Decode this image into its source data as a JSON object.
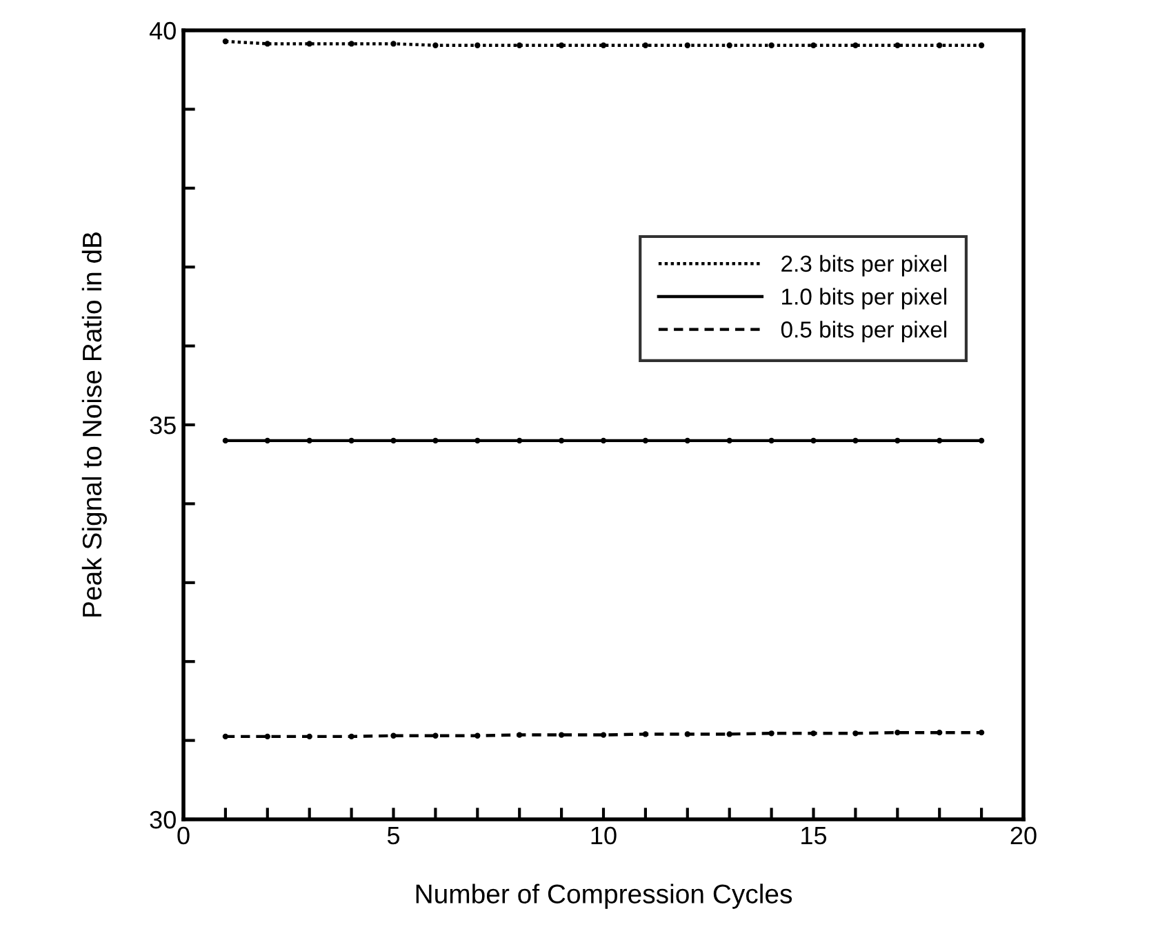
{
  "chart_data": {
    "type": "line",
    "xlabel": "Number of Compression Cycles",
    "ylabel": "Peak Signal to Noise Ratio in dB",
    "x": [
      1,
      2,
      3,
      4,
      5,
      6,
      7,
      8,
      9,
      10,
      11,
      12,
      13,
      14,
      15,
      16,
      17,
      18,
      19
    ],
    "series": [
      {
        "name": "2.3 bits per pixel",
        "color": "#000000",
        "line_style": "dotted",
        "values": [
          39.86,
          39.83,
          39.83,
          39.83,
          39.83,
          39.81,
          39.81,
          39.81,
          39.81,
          39.81,
          39.81,
          39.81,
          39.81,
          39.81,
          39.81,
          39.81,
          39.81,
          39.81,
          39.81
        ]
      },
      {
        "name": "1.0 bits per pixel",
        "color": "#000000",
        "line_style": "solid",
        "values": [
          34.8,
          34.8,
          34.8,
          34.8,
          34.8,
          34.8,
          34.8,
          34.8,
          34.8,
          34.8,
          34.8,
          34.8,
          34.8,
          34.8,
          34.8,
          34.8,
          34.8,
          34.8,
          34.8
        ]
      },
      {
        "name": "0.5 bits per pixel",
        "color": "#000000",
        "line_style": "dashed",
        "values": [
          31.05,
          31.05,
          31.05,
          31.05,
          31.06,
          31.06,
          31.06,
          31.07,
          31.07,
          31.07,
          31.08,
          31.08,
          31.08,
          31.09,
          31.09,
          31.09,
          31.1,
          31.1,
          31.1
        ]
      }
    ],
    "marker": "circle",
    "legend": "right",
    "grid": false,
    "xlim": [
      0,
      20
    ],
    "ylim": [
      30,
      40
    ],
    "xticks": [
      0,
      {
        "value": 1,
        "label": null
      },
      {
        "value": 2,
        "label": null
      },
      {
        "value": 3,
        "label": null
      },
      {
        "value": 4,
        "label": null
      },
      5,
      {
        "value": 6,
        "label": null
      },
      {
        "value": 7,
        "label": null
      },
      {
        "value": 8,
        "label": null
      },
      {
        "value": 9,
        "label": null
      },
      10,
      {
        "value": 11,
        "label": null
      },
      {
        "value": 12,
        "label": null
      },
      {
        "value": 13,
        "label": null
      },
      {
        "value": 14,
        "label": null
      },
      15,
      {
        "value": 16,
        "label": null
      },
      {
        "value": 17,
        "label": null
      },
      {
        "value": 18,
        "label": null
      },
      {
        "value": 19,
        "label": null
      },
      20
    ],
    "yticks": [
      30,
      {
        "value": 31,
        "label": null
      },
      {
        "value": 32,
        "label": null
      },
      {
        "value": 33,
        "label": null
      },
      {
        "value": 34,
        "label": null
      },
      35,
      {
        "value": 36,
        "label": null
      },
      {
        "value": 37,
        "label": null
      },
      {
        "value": 38,
        "label": null
      },
      {
        "value": 39,
        "label": null
      },
      40
    ]
  }
}
